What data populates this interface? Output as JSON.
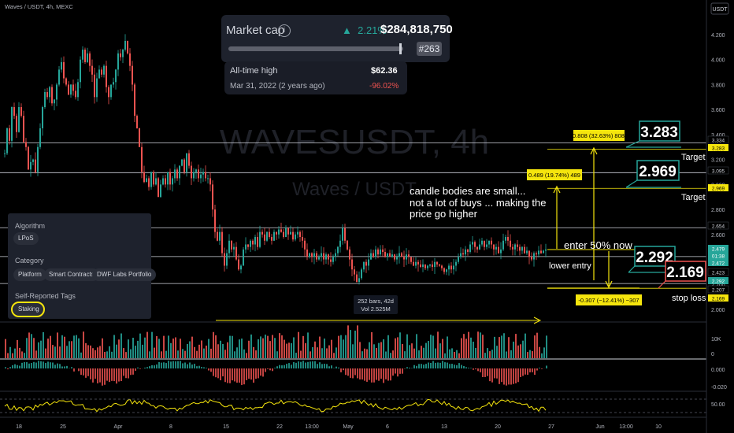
{
  "header": {
    "symbol_line": "Waves / USDT, 4h, MEXC",
    "currency_button": "USDT"
  },
  "watermark": {
    "symbol": "WAVESUSDT, 4h",
    "name": "Waves / USDT"
  },
  "market_cap": {
    "title": "Market cap",
    "info_icon": "info-icon",
    "change_arrow": "▲",
    "change": "2.21%",
    "value": "$284,818,750",
    "rank": "#263",
    "ath_label": "All-time high",
    "ath_value": "$62.36",
    "ath_date": "Mar 31, 2022 (2 years ago)",
    "ath_change": "-96.02%"
  },
  "sidebar": {
    "algorithm_heading": "Algorithm",
    "algorithm_chip": "LPoS",
    "category_heading": "Category",
    "categories": [
      "Platform",
      "Smart Contracts",
      "DWF Labs Portfolio"
    ],
    "tags_heading": "Self-Reported Tags",
    "tag_chip": "Staking"
  },
  "chart_data": {
    "type": "candlestick",
    "interval": "4h",
    "y_axis": {
      "ticks": [
        "4.200",
        "4.000",
        "3.800",
        "3.600",
        "3.400",
        "3.200",
        "3.000",
        "2.800",
        "2.600",
        "2.400",
        "2.200",
        "2.000"
      ],
      "range": [
        1.96,
        4.27
      ]
    },
    "x_axis": {
      "ticks": [
        "18",
        "25",
        "Apr",
        "8",
        "15",
        "22",
        "13:00",
        "May",
        "6",
        "13",
        "20",
        "27",
        "Jun",
        "13:00",
        "10"
      ]
    },
    "close_path": [
      [
        0,
        3.25
      ],
      [
        3,
        3.45
      ],
      [
        6,
        3.35
      ],
      [
        9,
        3.62
      ],
      [
        12,
        3.55
      ],
      [
        15,
        3.42
      ],
      [
        18,
        3.62
      ],
      [
        21,
        3.55
      ],
      [
        24,
        3.34
      ],
      [
        27,
        3.3
      ],
      [
        30,
        3.12
      ],
      [
        33,
        3.18
      ],
      [
        36,
        3.2
      ],
      [
        39,
        3.1
      ],
      [
        42,
        3.3
      ],
      [
        45,
        3.45
      ],
      [
        48,
        3.62
      ],
      [
        51,
        3.74
      ],
      [
        54,
        3.7
      ],
      [
        57,
        3.78
      ],
      [
        60,
        3.65
      ],
      [
        63,
        3.68
      ],
      [
        66,
        3.8
      ],
      [
        69,
        3.92
      ],
      [
        72,
        3.98
      ],
      [
        75,
        3.85
      ],
      [
        78,
        3.8
      ],
      [
        81,
        3.72
      ],
      [
        84,
        3.8
      ],
      [
        87,
        3.75
      ],
      [
        90,
        3.7
      ],
      [
        93,
        3.82
      ],
      [
        96,
        4.0
      ],
      [
        99,
        4.08
      ],
      [
        102,
        3.98
      ],
      [
        105,
        4.05
      ],
      [
        108,
        3.95
      ],
      [
        111,
        3.88
      ],
      [
        114,
        3.7
      ],
      [
        117,
        3.85
      ],
      [
        120,
        3.92
      ],
      [
        123,
        3.88
      ],
      [
        126,
        3.95
      ],
      [
        129,
        3.78
      ],
      [
        132,
        3.7
      ],
      [
        135,
        3.8
      ],
      [
        138,
        3.82
      ],
      [
        141,
        3.92
      ],
      [
        144,
        4.05
      ],
      [
        147,
        4.02
      ],
      [
        150,
        4.08
      ],
      [
        153,
        4.15
      ],
      [
        156,
        4.05
      ],
      [
        159,
        3.95
      ],
      [
        162,
        3.8
      ],
      [
        165,
        3.55
      ],
      [
        168,
        3.45
      ],
      [
        171,
        3.3
      ],
      [
        174,
        3.1
      ],
      [
        177,
        3.02
      ],
      [
        180,
        3.05
      ],
      [
        183,
        2.98
      ],
      [
        186,
        3.1
      ],
      [
        189,
        3.0
      ],
      [
        192,
        3.05
      ],
      [
        195,
        2.9
      ],
      [
        198,
        3.0
      ],
      [
        201,
        3.05
      ],
      [
        204,
        3.0
      ],
      [
        207,
        3.1
      ],
      [
        210,
        3.0
      ],
      [
        213,
        3.05
      ],
      [
        216,
        3.12
      ],
      [
        219,
        3.05
      ],
      [
        222,
        3.15
      ],
      [
        225,
        3.2
      ],
      [
        228,
        3.1
      ],
      [
        231,
        3.25
      ],
      [
        234,
        3.15
      ],
      [
        237,
        3.05
      ],
      [
        240,
        3.1
      ],
      [
        243,
        3.12
      ],
      [
        246,
        3.05
      ],
      [
        249,
        3.08
      ],
      [
        252,
        3.1
      ],
      [
        255,
        3.05
      ],
      [
        258,
        3.05
      ],
      [
        261,
        3.0
      ],
      [
        264,
        2.8
      ],
      [
        267,
        2.62
      ],
      [
        270,
        2.55
      ],
      [
        273,
        2.62
      ],
      [
        276,
        2.45
      ],
      [
        279,
        2.35
      ],
      [
        282,
        2.45
      ],
      [
        285,
        2.55
      ],
      [
        288,
        2.48
      ],
      [
        291,
        2.5
      ],
      [
        294,
        2.4
      ],
      [
        297,
        2.32
      ],
      [
        300,
        2.35
      ],
      [
        303,
        2.48
      ],
      [
        306,
        2.52
      ],
      [
        309,
        2.5
      ],
      [
        312,
        2.55
      ],
      [
        315,
        2.52
      ],
      [
        318,
        2.58
      ],
      [
        321,
        2.5
      ],
      [
        324,
        2.62
      ],
      [
        327,
        2.6
      ],
      [
        330,
        2.55
      ],
      [
        333,
        2.62
      ],
      [
        336,
        2.58
      ],
      [
        339,
        2.55
      ],
      [
        342,
        2.62
      ],
      [
        345,
        2.6
      ],
      [
        348,
        2.64
      ],
      [
        351,
        2.62
      ],
      [
        354,
        2.58
      ],
      [
        357,
        2.65
      ],
      [
        360,
        2.6
      ],
      [
        363,
        2.62
      ],
      [
        366,
        2.56
      ],
      [
        369,
        2.6
      ],
      [
        372,
        2.62
      ],
      [
        375,
        2.58
      ],
      [
        378,
        2.55
      ],
      [
        381,
        2.48
      ],
      [
        384,
        2.42
      ],
      [
        387,
        2.45
      ],
      [
        390,
        2.42
      ],
      [
        393,
        2.45
      ],
      [
        396,
        2.4
      ],
      [
        399,
        2.42
      ],
      [
        402,
        2.45
      ],
      [
        405,
        2.4
      ],
      [
        408,
        2.44
      ],
      [
        411,
        2.4
      ],
      [
        414,
        2.38
      ],
      [
        417,
        2.42
      ],
      [
        420,
        2.45
      ],
      [
        423,
        2.5
      ],
      [
        426,
        2.55
      ],
      [
        429,
        2.65
      ],
      [
        432,
        2.55
      ],
      [
        435,
        2.48
      ],
      [
        438,
        2.4
      ],
      [
        441,
        2.32
      ],
      [
        444,
        2.28
      ],
      [
        447,
        2.22
      ],
      [
        450,
        2.25
      ],
      [
        453,
        2.32
      ],
      [
        456,
        2.38
      ],
      [
        459,
        2.35
      ],
      [
        462,
        2.4
      ],
      [
        465,
        2.45
      ],
      [
        468,
        2.42
      ],
      [
        471,
        2.48
      ],
      [
        474,
        2.44
      ],
      [
        477,
        2.48
      ],
      [
        480,
        2.46
      ],
      [
        483,
        2.42
      ],
      [
        486,
        2.45
      ],
      [
        489,
        2.42
      ],
      [
        492,
        2.44
      ],
      [
        495,
        2.4
      ],
      [
        498,
        2.42
      ],
      [
        501,
        2.45
      ],
      [
        504,
        2.42
      ],
      [
        507,
        2.4
      ],
      [
        510,
        2.44
      ],
      [
        513,
        2.42
      ],
      [
        516,
        2.38
      ],
      [
        519,
        2.35
      ],
      [
        522,
        2.38
      ],
      [
        525,
        2.36
      ],
      [
        528,
        2.34
      ],
      [
        531,
        2.36
      ],
      [
        534,
        2.33
      ],
      [
        537,
        2.35
      ],
      [
        540,
        2.36
      ],
      [
        543,
        2.34
      ],
      [
        546,
        2.38
      ],
      [
        549,
        2.36
      ],
      [
        552,
        2.35
      ],
      [
        555,
        2.33
      ],
      [
        558,
        2.3
      ],
      [
        561,
        2.32
      ],
      [
        564,
        2.35
      ],
      [
        567,
        2.32
      ],
      [
        570,
        2.35
      ],
      [
        573,
        2.38
      ],
      [
        576,
        2.42
      ],
      [
        579,
        2.45
      ],
      [
        582,
        2.44
      ],
      [
        585,
        2.48
      ],
      [
        588,
        2.46
      ],
      [
        591,
        2.52
      ],
      [
        594,
        2.54
      ],
      [
        597,
        2.5
      ],
      [
        600,
        2.48
      ],
      [
        603,
        2.52
      ],
      [
        606,
        2.55
      ],
      [
        609,
        2.5
      ],
      [
        612,
        2.52
      ],
      [
        615,
        2.55
      ],
      [
        618,
        2.52
      ],
      [
        621,
        2.48
      ],
      [
        624,
        2.5
      ],
      [
        627,
        2.45
      ],
      [
        630,
        2.48
      ],
      [
        633,
        2.55
      ],
      [
        636,
        2.58
      ],
      [
        639,
        2.55
      ],
      [
        642,
        2.5
      ],
      [
        645,
        2.48
      ],
      [
        648,
        2.52
      ],
      [
        651,
        2.5
      ],
      [
        654,
        2.47
      ],
      [
        657,
        2.5
      ],
      [
        660,
        2.45
      ],
      [
        663,
        2.47
      ],
      [
        666,
        2.42
      ],
      [
        669,
        2.4
      ],
      [
        672,
        2.45
      ],
      [
        675,
        2.44
      ],
      [
        678,
        2.47
      ],
      [
        681,
        2.45
      ],
      [
        684,
        2.47
      ],
      [
        687,
        2.48
      ]
    ],
    "horizontal_levels": [
      3.334,
      3.283,
      3.095,
      2.969,
      2.654,
      2.423,
      2.207,
      2.169
    ],
    "price_labels": [
      {
        "value": "3.334",
        "bg": "#000000",
        "fg": "#d1d4dc"
      },
      {
        "value": "3.283",
        "bg": "#f5e50d",
        "fg": "#000000"
      },
      {
        "value": "3.095",
        "bg": "#000000",
        "fg": "#d1d4dc"
      },
      {
        "value": "2.969",
        "bg": "#f5e50d",
        "fg": "#000000"
      },
      {
        "value": "2.654",
        "bg": "#000000",
        "fg": "#d1d4dc"
      },
      {
        "value": "2.479",
        "bg": "#26a69a",
        "fg": "#ffffff"
      },
      {
        "value": "01:38",
        "bg": "#26a69a",
        "fg": "#ffffff"
      },
      {
        "value": "2.472",
        "bg": "#26a69a",
        "fg": "#ffffff"
      },
      {
        "value": "2.423",
        "bg": "#000000",
        "fg": "#d1d4dc"
      },
      {
        "value": "2.292",
        "bg": "#26a69a",
        "fg": "#ffffff"
      },
      {
        "value": "2.207",
        "bg": "#000000",
        "fg": "#d1d4dc"
      },
      {
        "value": "2.169",
        "bg": "#f5e50d",
        "fg": "#000000"
      }
    ],
    "measures": {
      "up_top": "0.808 (32.63%) 808",
      "up_mid": "0.489 (19.74%) 489",
      "down": "-0.307 (−12.41%) −307",
      "range_bars": "252 bars, 42d",
      "range_vol": "Vol 2.525M"
    },
    "annotations": {
      "note_line1": "candle bodies are small...",
      "note_line2": "not a lot of buys ... making the",
      "note_line3": "price go higher",
      "enter": "enter 50% now",
      "lower_entry": "lower entry",
      "stop_loss": "stop loss",
      "target1": "Target",
      "target2": "Target",
      "big_3283": "3.283",
      "big_2969": "2.969",
      "big_2292": "2.292",
      "big_2169": "2.169"
    },
    "sub_panels": {
      "volume_tick": "10K",
      "volume_tick2": "0",
      "macd_ticks": [
        "0.000",
        "-0.020"
      ],
      "rsi_tick": "50.00"
    }
  }
}
